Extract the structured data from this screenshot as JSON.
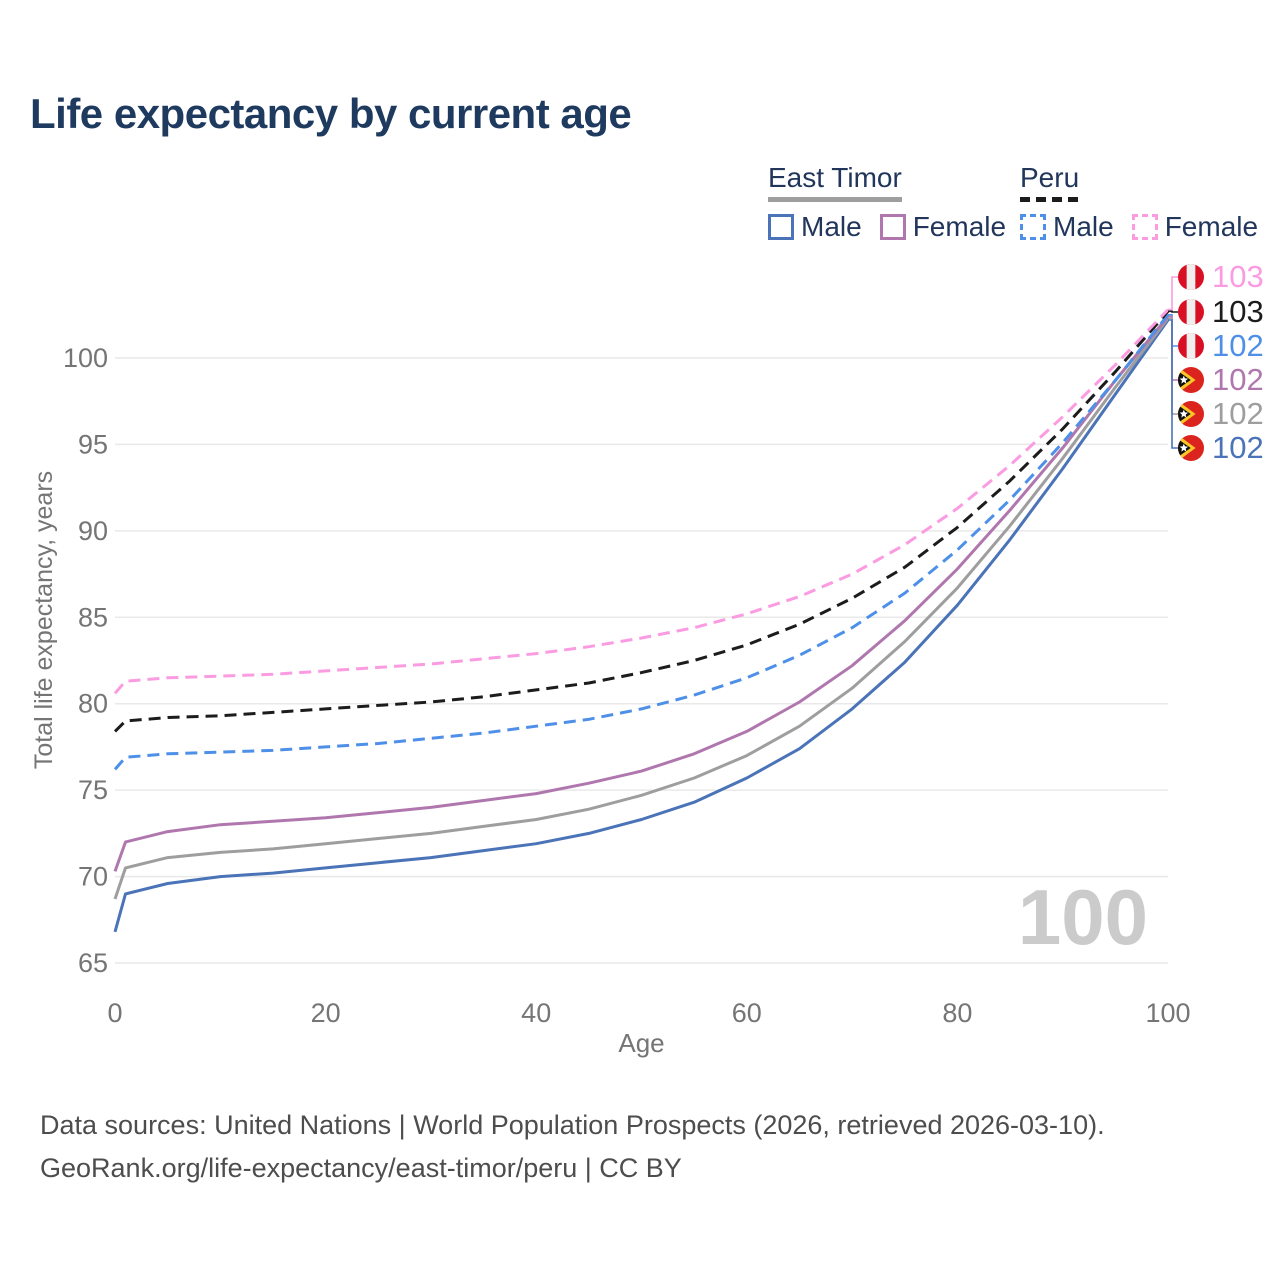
{
  "title": "Life expectancy by current age",
  "legend": {
    "groups": [
      {
        "id": "east-timor",
        "label": "East Timor",
        "line_style": "solid",
        "line_color": "#9e9e9e",
        "items": [
          {
            "id": "et-male",
            "label": "Male",
            "color": "#4a73b8"
          },
          {
            "id": "et-female",
            "label": "Female",
            "color": "#b077ae"
          }
        ]
      },
      {
        "id": "peru",
        "label": "Peru",
        "line_style": "dashed",
        "line_color": "#1c1c1c",
        "items": [
          {
            "id": "peru-male",
            "label": "Male",
            "color": "#4e90e8"
          },
          {
            "id": "peru-female",
            "label": "Female",
            "color": "#fb9be2"
          }
        ]
      }
    ]
  },
  "watermark": "100",
  "footer": {
    "line1": "Data sources: United Nations | World Population Prospects (2026, retrieved 2026-03-10).",
    "line2": "GeoRank.org/life-expectancy/east-timor/peru | CC BY"
  },
  "chart_data": {
    "type": "line",
    "title": "Life expectancy by current age",
    "xlabel": "Age",
    "ylabel": "Total life expectancy, years",
    "xlim": [
      0,
      100
    ],
    "ylim": [
      65,
      100
    ],
    "x_ticks": [
      0,
      20,
      40,
      60,
      80,
      100
    ],
    "y_ticks": [
      65,
      70,
      75,
      80,
      85,
      90,
      95,
      100
    ],
    "grid": "horizontal",
    "legend_position": "top-right",
    "x": [
      0,
      1,
      5,
      10,
      15,
      20,
      25,
      30,
      35,
      40,
      45,
      50,
      55,
      60,
      65,
      70,
      75,
      80,
      85,
      90,
      95,
      100
    ],
    "series": [
      {
        "name": "Peru Female",
        "country": "Peru",
        "sex": "Female",
        "color": "#fb9be2",
        "dash": true,
        "flag": "peru",
        "end_label": "103",
        "values": [
          80.6,
          81.3,
          81.5,
          81.6,
          81.7,
          81.9,
          82.1,
          82.3,
          82.6,
          82.9,
          83.3,
          83.8,
          84.4,
          85.2,
          86.2,
          87.5,
          89.2,
          91.3,
          93.8,
          96.6,
          99.6,
          102.8
        ]
      },
      {
        "name": "Peru Both sexes",
        "country": "Peru",
        "sex": "Both",
        "color": "#1c1c1c",
        "dash": true,
        "flag": "peru",
        "end_label": "103",
        "values": [
          78.4,
          79.0,
          79.2,
          79.3,
          79.5,
          79.7,
          79.9,
          80.1,
          80.4,
          80.8,
          81.2,
          81.8,
          82.5,
          83.4,
          84.6,
          86.1,
          87.9,
          90.2,
          92.9,
          95.9,
          99.2,
          102.7
        ]
      },
      {
        "name": "Peru Male",
        "country": "Peru",
        "sex": "Male",
        "color": "#4e90e8",
        "dash": true,
        "flag": "peru",
        "end_label": "102",
        "values": [
          76.2,
          76.9,
          77.1,
          77.2,
          77.3,
          77.5,
          77.7,
          78.0,
          78.3,
          78.7,
          79.1,
          79.7,
          80.5,
          81.5,
          82.8,
          84.4,
          86.4,
          88.9,
          91.8,
          95.1,
          98.7,
          102.5
        ]
      },
      {
        "name": "East Timor Female",
        "country": "East Timor",
        "sex": "Female",
        "color": "#b077ae",
        "dash": false,
        "flag": "east-timor",
        "end_label": "102",
        "values": [
          70.3,
          72.0,
          72.6,
          73.0,
          73.2,
          73.4,
          73.7,
          74.0,
          74.4,
          74.8,
          75.4,
          76.1,
          77.1,
          78.4,
          80.1,
          82.2,
          84.8,
          87.8,
          91.2,
          94.8,
          98.7,
          102.4
        ]
      },
      {
        "name": "East Timor Both sexes",
        "country": "East Timor",
        "sex": "Both",
        "color": "#9e9e9e",
        "dash": false,
        "flag": "east-timor",
        "end_label": "102",
        "values": [
          68.7,
          70.5,
          71.1,
          71.4,
          71.6,
          71.9,
          72.2,
          72.5,
          72.9,
          73.3,
          73.9,
          74.7,
          75.7,
          77.0,
          78.7,
          80.9,
          83.6,
          86.7,
          90.3,
          94.2,
          98.3,
          102.3
        ]
      },
      {
        "name": "East Timor Male",
        "country": "East Timor",
        "sex": "Male",
        "color": "#4a73b8",
        "dash": false,
        "flag": "east-timor",
        "end_label": "102",
        "values": [
          66.8,
          69.0,
          69.6,
          70.0,
          70.2,
          70.5,
          70.8,
          71.1,
          71.5,
          71.9,
          72.5,
          73.3,
          74.3,
          75.7,
          77.4,
          79.7,
          82.4,
          85.7,
          89.5,
          93.6,
          97.9,
          102.2
        ]
      }
    ]
  }
}
